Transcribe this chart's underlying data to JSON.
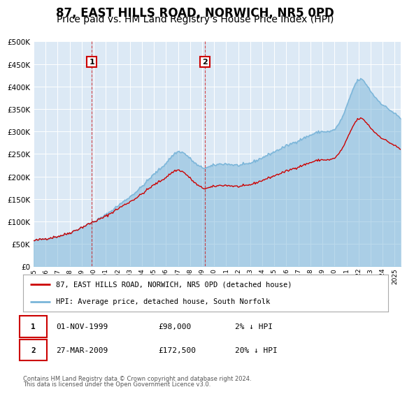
{
  "title": "87, EAST HILLS ROAD, NORWICH, NR5 0PD",
  "subtitle": "Price paid vs. HM Land Registry's House Price Index (HPI)",
  "title_fontsize": 12,
  "subtitle_fontsize": 10,
  "background_color": "#ffffff",
  "plot_bg_color": "#dce9f5",
  "ylim": [
    0,
    500000
  ],
  "yticks": [
    0,
    50000,
    100000,
    150000,
    200000,
    250000,
    300000,
    350000,
    400000,
    450000,
    500000
  ],
  "ytick_labels": [
    "£0",
    "£50K",
    "£100K",
    "£150K",
    "£200K",
    "£250K",
    "£300K",
    "£350K",
    "£400K",
    "£450K",
    "£500K"
  ],
  "xlim_start": 1995.0,
  "xlim_end": 2025.5,
  "grid_color": "#ffffff",
  "hpi_color": "#7ab5d9",
  "hpi_fill_alpha": 0.5,
  "price_color": "#cc0000",
  "transaction1_x": 1999.83,
  "transaction1_y": 98000,
  "transaction1_label": "1",
  "transaction1_date": "01-NOV-1999",
  "transaction1_price": "£98,000",
  "transaction1_hpi": "2% ↓ HPI",
  "transaction2_x": 2009.23,
  "transaction2_y": 172500,
  "transaction2_label": "2",
  "transaction2_date": "27-MAR-2009",
  "transaction2_price": "£172,500",
  "transaction2_hpi": "20% ↓ HPI",
  "legend_line1": "87, EAST HILLS ROAD, NORWICH, NR5 0PD (detached house)",
  "legend_line2": "HPI: Average price, detached house, South Norfolk",
  "footer1": "Contains HM Land Registry data © Crown copyright and database right 2024.",
  "footer2": "This data is licensed under the Open Government Licence v3.0."
}
